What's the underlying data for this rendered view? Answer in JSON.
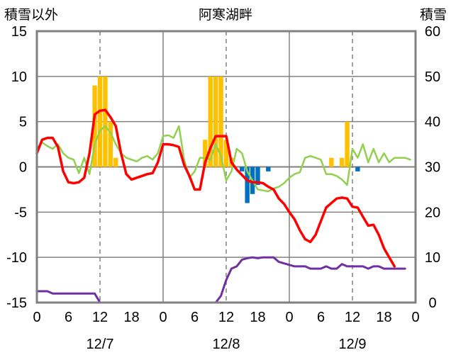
{
  "chart_data": {
    "type": "bar+line",
    "title": "阿寒湖畔",
    "left_axis_label": "積雪以外",
    "right_axis_label": "積雪",
    "ylim_left": [
      -15,
      15
    ],
    "yticks_left": [
      15,
      10,
      5,
      0,
      -5,
      -10,
      -15
    ],
    "ylim_right": [
      0,
      60
    ],
    "yticks_right": [
      60,
      50,
      40,
      30,
      20,
      10,
      0
    ],
    "xlim_hours": [
      0,
      72
    ],
    "x_tick_labels": [
      "0",
      "6",
      "12",
      "18",
      "0",
      "6",
      "12",
      "18",
      "0",
      "6",
      "12",
      "18",
      "0"
    ],
    "date_labels": [
      {
        "text": "12/7",
        "hour": 12
      },
      {
        "text": "12/8",
        "hour": 36
      },
      {
        "text": "12/9",
        "hour": 60
      }
    ],
    "vertical_lines": {
      "solid_hours": [
        24,
        48
      ],
      "dashed_hours": [
        12,
        36,
        60
      ]
    },
    "colors": {
      "snowfall_bar": "#FFC000",
      "precip_bar": "#0070C0",
      "temperature": "#FF0000",
      "green_series": "#92D050",
      "snow_depth": "#7030A0",
      "grid": "#808080",
      "frame": "#808080"
    },
    "bars_positive": [
      {
        "hour": 11,
        "value": 9
      },
      {
        "hour": 12,
        "value": 10
      },
      {
        "hour": 13,
        "value": 10
      },
      {
        "hour": 14,
        "value": 5
      },
      {
        "hour": 15,
        "value": 1
      },
      {
        "hour": 32,
        "value": 3
      },
      {
        "hour": 33,
        "value": 10
      },
      {
        "hour": 34,
        "value": 10
      },
      {
        "hour": 35,
        "value": 10
      },
      {
        "hour": 36,
        "value": 3
      },
      {
        "hour": 37,
        "value": 1
      },
      {
        "hour": 56,
        "value": 1
      },
      {
        "hour": 58,
        "value": 1
      },
      {
        "hour": 59,
        "value": 5
      }
    ],
    "bars_negative": [
      {
        "hour": 39,
        "value": -0.5
      },
      {
        "hour": 40,
        "value": -4
      },
      {
        "hour": 41,
        "value": -3
      },
      {
        "hour": 42,
        "value": -2
      },
      {
        "hour": 44,
        "value": -0.5
      },
      {
        "hour": 61,
        "value": -0.5
      }
    ],
    "temperature_left": [
      [
        0,
        1.5
      ],
      [
        1,
        3
      ],
      [
        2,
        3.2
      ],
      [
        3,
        3.2
      ],
      [
        4,
        2.2
      ],
      [
        5,
        -0.5
      ],
      [
        6,
        -1.7
      ],
      [
        7,
        -1.8
      ],
      [
        8,
        -1.7
      ],
      [
        9,
        -1.2
      ],
      [
        10,
        1.5
      ],
      [
        11,
        5.8
      ],
      [
        12,
        6.2
      ],
      [
        13,
        6.3
      ],
      [
        14,
        5.5
      ],
      [
        15,
        4.5
      ],
      [
        16,
        1.5
      ],
      [
        17,
        -0.8
      ],
      [
        18,
        -1.4
      ],
      [
        19,
        -1.2
      ],
      [
        20,
        -1
      ],
      [
        21,
        -0.8
      ],
      [
        22,
        -0.7
      ],
      [
        23,
        0.5
      ],
      [
        24,
        2.5
      ],
      [
        25,
        2.5
      ],
      [
        26,
        2.4
      ],
      [
        27,
        2.2
      ],
      [
        28,
        0.2
      ],
      [
        29,
        -1
      ],
      [
        30,
        -2.5
      ],
      [
        31,
        -2.5
      ],
      [
        32,
        0.5
      ],
      [
        33,
        2.1
      ],
      [
        34,
        3.4
      ],
      [
        35,
        3.4
      ],
      [
        36,
        3.4
      ],
      [
        37,
        0.5
      ],
      [
        38,
        -0.3
      ],
      [
        39,
        -0.9
      ],
      [
        40,
        -1.5
      ],
      [
        41,
        -1.7
      ],
      [
        42,
        -1.7
      ],
      [
        43,
        -1.8
      ],
      [
        44,
        -2.2
      ],
      [
        45,
        -2.5
      ],
      [
        46,
        -3.5
      ],
      [
        47,
        -4.1
      ],
      [
        48,
        -5
      ],
      [
        49,
        -5.8
      ],
      [
        50,
        -7
      ],
      [
        51,
        -8
      ],
      [
        52,
        -8.3
      ],
      [
        53,
        -7.5
      ],
      [
        54,
        -6
      ],
      [
        55,
        -4.5
      ],
      [
        56,
        -4
      ],
      [
        57,
        -3.5
      ],
      [
        58,
        -3.4
      ],
      [
        59,
        -3.5
      ],
      [
        60,
        -4.4
      ],
      [
        61,
        -4.5
      ],
      [
        62,
        -5.5
      ],
      [
        63,
        -6.5
      ],
      [
        64,
        -6.4
      ],
      [
        65,
        -7.5
      ],
      [
        66,
        -9
      ],
      [
        67,
        -10
      ],
      [
        68,
        -11
      ]
    ],
    "green_left": [
      [
        0,
        2
      ],
      [
        1,
        2.7
      ],
      [
        2,
        2.3
      ],
      [
        3,
        2
      ],
      [
        4,
        2.5
      ],
      [
        5,
        1.5
      ],
      [
        6,
        1
      ],
      [
        7,
        0.8
      ],
      [
        8,
        -0.7
      ],
      [
        9,
        1
      ],
      [
        10,
        -0.8
      ],
      [
        11,
        2.5
      ],
      [
        12,
        4
      ],
      [
        13,
        4.5
      ],
      [
        14,
        3.8
      ],
      [
        15,
        2.5
      ],
      [
        16,
        1.5
      ],
      [
        17,
        1
      ],
      [
        18,
        0.8
      ],
      [
        19,
        0.6
      ],
      [
        20,
        1
      ],
      [
        21,
        1.2
      ],
      [
        22,
        0.8
      ],
      [
        23,
        1.5
      ],
      [
        24,
        3.4
      ],
      [
        25,
        3.5
      ],
      [
        26,
        3.2
      ],
      [
        27,
        4.5
      ],
      [
        28,
        0.8
      ],
      [
        29,
        -1.2
      ],
      [
        30,
        -0.5
      ],
      [
        31,
        1
      ],
      [
        32,
        1
      ],
      [
        33,
        0.8
      ],
      [
        34,
        2.5
      ],
      [
        35,
        1.2
      ],
      [
        36,
        -1.5
      ],
      [
        37,
        -0.5
      ],
      [
        38,
        2
      ],
      [
        39,
        1.5
      ],
      [
        40,
        -0.5
      ],
      [
        41,
        -1.5
      ],
      [
        42,
        -2.5
      ],
      [
        43,
        -2.6
      ],
      [
        44,
        -2.7
      ],
      [
        45,
        -2.4
      ],
      [
        46,
        -2.2
      ],
      [
        47,
        -1.8
      ],
      [
        48,
        -1.2
      ],
      [
        49,
        -0.8
      ],
      [
        50,
        -0.6
      ],
      [
        51,
        1
      ],
      [
        52,
        1.2
      ],
      [
        53,
        1
      ],
      [
        54,
        0.8
      ],
      [
        55,
        -0.8
      ],
      [
        56,
        -0.8
      ],
      [
        57,
        -1
      ],
      [
        58,
        -1.4
      ],
      [
        59,
        -2
      ],
      [
        60,
        2
      ],
      [
        61,
        1
      ],
      [
        62,
        2.5
      ],
      [
        63,
        0.5
      ],
      [
        64,
        2
      ],
      [
        65,
        0.5
      ],
      [
        66,
        1.5
      ],
      [
        67,
        0.5
      ],
      [
        68,
        1
      ],
      [
        69,
        1
      ],
      [
        70,
        1
      ],
      [
        71,
        0.8
      ]
    ],
    "snow_depth_right": [
      [
        0,
        2.5
      ],
      [
        2,
        2.5
      ],
      [
        3,
        2
      ],
      [
        10,
        2
      ],
      [
        11,
        2
      ],
      [
        12,
        0
      ],
      [
        26,
        0
      ],
      [
        34,
        0
      ],
      [
        35,
        1.5
      ],
      [
        36,
        5
      ],
      [
        37,
        7.5
      ],
      [
        38,
        8
      ],
      [
        39,
        9.5
      ],
      [
        40,
        9.8
      ],
      [
        41,
        10
      ],
      [
        42,
        9.8
      ],
      [
        43,
        10
      ],
      [
        45,
        10
      ],
      [
        46,
        9
      ],
      [
        49,
        8
      ],
      [
        51,
        8
      ],
      [
        52,
        7.5
      ],
      [
        54,
        7.5
      ],
      [
        55,
        8
      ],
      [
        56,
        7.5
      ],
      [
        57,
        7.5
      ],
      [
        58,
        8.5
      ],
      [
        59,
        8
      ],
      [
        60,
        8
      ],
      [
        61,
        8
      ],
      [
        62,
        8
      ],
      [
        63,
        7.5
      ],
      [
        64,
        8
      ],
      [
        65,
        8
      ],
      [
        66,
        7.5
      ],
      [
        67,
        7.5
      ],
      [
        68,
        7.5
      ],
      [
        69,
        7.5
      ],
      [
        70,
        7.5
      ]
    ]
  }
}
